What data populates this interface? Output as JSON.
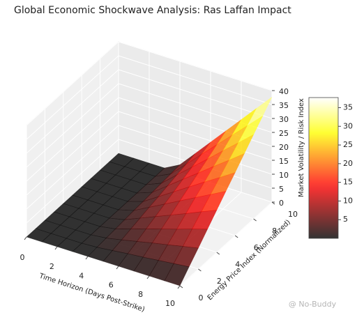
{
  "chart_data": {
    "type": "surface3d",
    "title": "Global Economic Shockwave Analysis: Ras Laffan Impact",
    "xlabel": "Time Horizon (Days Post-Strike)",
    "ylabel": "Energy Price Index (Normalized)",
    "zlabel": "Market Volatility / Risk Index",
    "x": [
      0,
      1,
      2,
      3,
      4,
      5,
      6,
      7,
      8,
      9,
      10
    ],
    "y": [
      0,
      1,
      2,
      3,
      4,
      5,
      6,
      7,
      8,
      9,
      10
    ],
    "z": [
      [
        0,
        0,
        0,
        0,
        0,
        0,
        0,
        0,
        0,
        0,
        0
      ],
      [
        0,
        0,
        0,
        0,
        0,
        0,
        0,
        0,
        0,
        0,
        0
      ],
      [
        0,
        0,
        0,
        0,
        0,
        0,
        0,
        0,
        0,
        0,
        0
      ],
      [
        0,
        0,
        0,
        0,
        0,
        0,
        0,
        0,
        0,
        0,
        0
      ],
      [
        0,
        0.3,
        0.6,
        0.9,
        1.2,
        1.5,
        1.7,
        2.0,
        2.3,
        2.6,
        2.9
      ],
      [
        0,
        0.9,
        1.7,
        2.6,
        3.5,
        4.4,
        5.2,
        6.1,
        7.0,
        7.8,
        8.7
      ],
      [
        0,
        1.5,
        2.9,
        4.4,
        5.8,
        7.3,
        8.7,
        10.2,
        11.6,
        13.1,
        14.5
      ],
      [
        0,
        2.0,
        4.1,
        6.1,
        8.1,
        10.2,
        12.2,
        14.2,
        16.2,
        18.3,
        20.3
      ],
      [
        0,
        2.6,
        5.2,
        7.8,
        10.4,
        13.1,
        15.7,
        18.3,
        20.9,
        23.5,
        26.1
      ],
      [
        0,
        3.2,
        6.4,
        9.6,
        12.8,
        16.0,
        19.1,
        22.3,
        25.5,
        28.7,
        31.9
      ],
      [
        0,
        3.8,
        7.5,
        11.3,
        15.1,
        18.9,
        22.6,
        26.4,
        30.2,
        33.9,
        37.7
      ]
    ],
    "xlim": [
      0,
      10
    ],
    "xticks": [
      0,
      2,
      4,
      6,
      8,
      10
    ],
    "ylim": [
      0,
      10
    ],
    "yticks": [
      0,
      2,
      4,
      6,
      8,
      10
    ],
    "zlim": [
      0,
      40
    ],
    "zticks": [
      0,
      5,
      10,
      15,
      20,
      25,
      30,
      35,
      40
    ],
    "colormap": "hot",
    "alpha": 0.8,
    "clim": [
      0,
      37.7
    ],
    "cticks": [
      5,
      10,
      15,
      20,
      25,
      30,
      35
    ],
    "grid": true,
    "watermark": "@ No-Buddy"
  }
}
